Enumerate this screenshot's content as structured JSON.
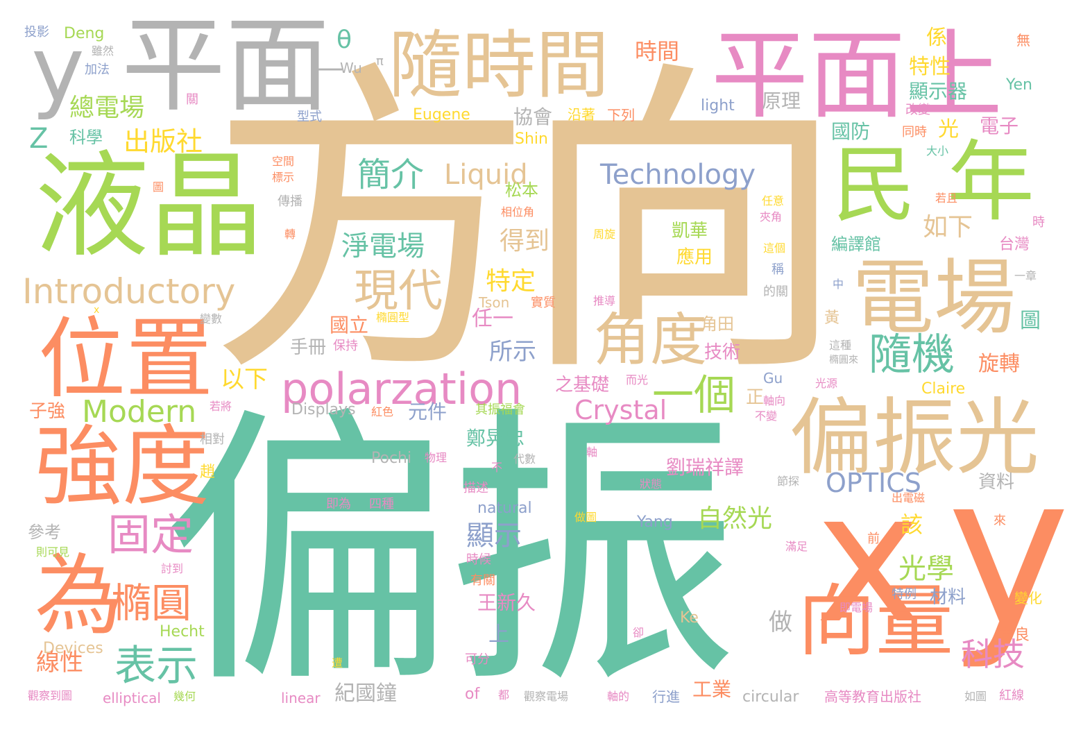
{
  "colors": {
    "teal": "#66c2a5",
    "orange": "#fc8d62",
    "blue": "#8da0cb",
    "pink": "#e78ac3",
    "green": "#a6d854",
    "yellow": "#ffd92f",
    "tan": "#e5c494",
    "gray": "#b3b3b3"
  },
  "words": [
    "方向",
    "偏振",
    "x",
    "y",
    "平面",
    "平面上",
    "液晶",
    "隨時間",
    "民",
    "年",
    "電場",
    "偏振光",
    "位置",
    "強度",
    "為",
    "向量",
    "y",
    "角度",
    "現代",
    "polarzation",
    "橢圓",
    "固定",
    "表示",
    "隨機",
    "一個",
    "Introductory",
    "Modern",
    "Technology",
    "簡介",
    "Liquid",
    "總電場",
    "出版社",
    "淨電場",
    "Crystal",
    "OPTICS",
    "科技",
    "光學",
    "得到",
    "如下",
    "以下",
    "特定",
    "自然光",
    "顯示",
    "所示",
    "劉瑞祥譯",
    "時間",
    "特性",
    "顯示器",
    "係",
    "原理",
    "國防",
    "電子",
    "光",
    "Yen",
    "無",
    "改變",
    "同時",
    "大小",
    "Z",
    "科學",
    "θ",
    "Wu",
    "π",
    "Deng",
    "投影",
    "雖然",
    "加法",
    "型式",
    "Eugene",
    "協會",
    "沿著",
    "下列",
    "light",
    "關",
    "Shin",
    "空間",
    "標示",
    "傳播",
    "圖",
    "轉",
    "松本",
    "凱華",
    "應用",
    "相位角",
    "周旋",
    "任意",
    "夾角",
    "稱",
    "這個",
    "的關",
    "推導",
    "實質",
    "Tson",
    "國立",
    "橢圓型",
    "手冊",
    "保持",
    "若且",
    "時",
    "台灣",
    "編譯館",
    "中",
    "一章",
    "黃",
    "圖",
    "旋轉",
    "這種",
    "橢圓來",
    "光源",
    "任一",
    "Gu",
    "元件",
    "其振福會",
    "鄭晃忠",
    "王新久",
    "上",
    "該",
    "做",
    "角田",
    "技術",
    "正",
    "Displays",
    "紅色",
    "軸向",
    "不變",
    "Claire",
    "之基礎",
    "而光",
    "子強",
    "若將",
    "Pochi",
    "物理",
    "相對",
    "代數",
    "軸",
    "不",
    "描述",
    "狀態",
    "即為",
    "四種",
    "natural",
    "Yang",
    "做圖",
    "趙",
    "參考",
    "則可見",
    "討到",
    "時候",
    "有關",
    "特例",
    "材料",
    "滿足",
    "出電磁",
    "前",
    "來",
    "變化",
    "即電場",
    "卻",
    "Hecht",
    "Ke",
    "Devices",
    "遭",
    "可分",
    "市良",
    "線性",
    "觀察到圖",
    "elliptical",
    "幾何",
    "linear",
    "紀國鐘",
    "of",
    "都",
    "觀察電場",
    "軸的",
    "行進",
    "工業",
    "circular",
    "高等教育出版社",
    "如圖",
    "紅線",
    "資料",
    "節探",
    "變數",
    "—",
    "x"
  ]
}
